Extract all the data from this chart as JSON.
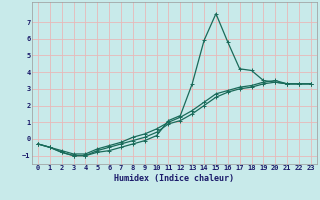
{
  "xlabel": "Humidex (Indice chaleur)",
  "bg_color": "#c8eaea",
  "grid_color": "#e8b8b8",
  "line_color": "#1a6b5a",
  "xlim": [
    -0.5,
    23.5
  ],
  "ylim": [
    -1.5,
    8.2
  ],
  "yticks": [
    -1,
    0,
    1,
    2,
    3,
    4,
    5,
    6,
    7
  ],
  "xticks": [
    0,
    1,
    2,
    3,
    4,
    5,
    6,
    7,
    8,
    9,
    10,
    11,
    12,
    13,
    14,
    15,
    16,
    17,
    18,
    19,
    20,
    21,
    22,
    23
  ],
  "series1_x": [
    0,
    1,
    2,
    3,
    4,
    5,
    6,
    7,
    8,
    9,
    10,
    11,
    12,
    13,
    14,
    15,
    16,
    17,
    18,
    19,
    20,
    21,
    22,
    23
  ],
  "series1_y": [
    -0.3,
    -0.5,
    -0.8,
    -1.0,
    -1.0,
    -0.8,
    -0.7,
    -0.5,
    -0.3,
    -0.1,
    0.2,
    1.1,
    1.4,
    3.3,
    5.9,
    7.5,
    5.8,
    4.2,
    4.1,
    3.5,
    3.4,
    3.3,
    3.3,
    3.3
  ],
  "series2_x": [
    0,
    1,
    2,
    3,
    4,
    5,
    6,
    7,
    8,
    9,
    10,
    11,
    12,
    13,
    14,
    15,
    16,
    17,
    18,
    19,
    20,
    21,
    22,
    23
  ],
  "series2_y": [
    -0.3,
    -0.5,
    -0.8,
    -1.0,
    -1.0,
    -0.7,
    -0.5,
    -0.3,
    -0.1,
    0.1,
    0.4,
    0.9,
    1.1,
    1.5,
    2.0,
    2.5,
    2.8,
    3.0,
    3.1,
    3.3,
    3.4,
    3.3,
    3.3,
    3.3
  ],
  "series3_x": [
    0,
    1,
    2,
    3,
    4,
    5,
    6,
    7,
    8,
    9,
    10,
    11,
    12,
    13,
    14,
    15,
    16,
    17,
    18,
    19,
    20,
    21,
    22,
    23
  ],
  "series3_y": [
    -0.3,
    -0.5,
    -0.7,
    -0.9,
    -0.9,
    -0.6,
    -0.4,
    -0.2,
    0.1,
    0.3,
    0.6,
    1.0,
    1.3,
    1.7,
    2.2,
    2.7,
    2.9,
    3.1,
    3.2,
    3.4,
    3.5,
    3.3,
    3.3,
    3.3
  ],
  "tick_fontsize": 5.0,
  "xlabel_fontsize": 6.0,
  "label_color": "#1a1a6a",
  "marker_size": 2.5,
  "line_width": 0.9
}
